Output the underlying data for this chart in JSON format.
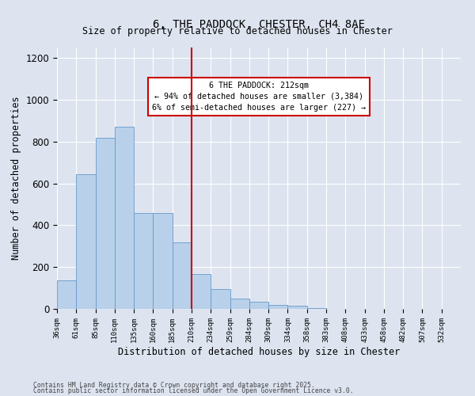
{
  "title": "6, THE PADDOCK, CHESTER, CH4 8AE",
  "subtitle": "Size of property relative to detached houses in Chester",
  "xlabel": "Distribution of detached houses by size in Chester",
  "ylabel": "Number of detached properties",
  "bar_labels": [
    "36sqm",
    "61sqm",
    "85sqm",
    "110sqm",
    "135sqm",
    "160sqm",
    "185sqm",
    "210sqm",
    "234sqm",
    "259sqm",
    "284sqm",
    "309sqm",
    "334sqm",
    "358sqm",
    "383sqm",
    "408sqm",
    "433sqm",
    "458sqm",
    "482sqm",
    "507sqm",
    "532sqm"
  ],
  "histogram_counts": [
    135,
    645,
    820,
    870,
    460,
    460,
    320,
    165,
    95,
    50,
    35,
    20,
    15,
    5,
    0,
    0,
    0,
    0,
    0,
    0,
    0
  ],
  "n_bins": 21,
  "bar_color": "#b8d0ea",
  "bar_edge_color": "#6699cc",
  "vline_bin": 7,
  "vline_color": "#cc0000",
  "annotation_text": "6 THE PADDOCK: 212sqm\n← 94% of detached houses are smaller (3,384)\n6% of semi-detached houses are larger (227) →",
  "annotation_box_color": "#cc0000",
  "background_color": "#dde4f0",
  "grid_color": "#ffffff",
  "ylim": [
    0,
    1250
  ],
  "yticks": [
    0,
    200,
    400,
    600,
    800,
    1000,
    1200
  ],
  "footer_line1": "Contains HM Land Registry data © Crown copyright and database right 2025.",
  "footer_line2": "Contains public sector information licensed under the Open Government Licence v3.0."
}
